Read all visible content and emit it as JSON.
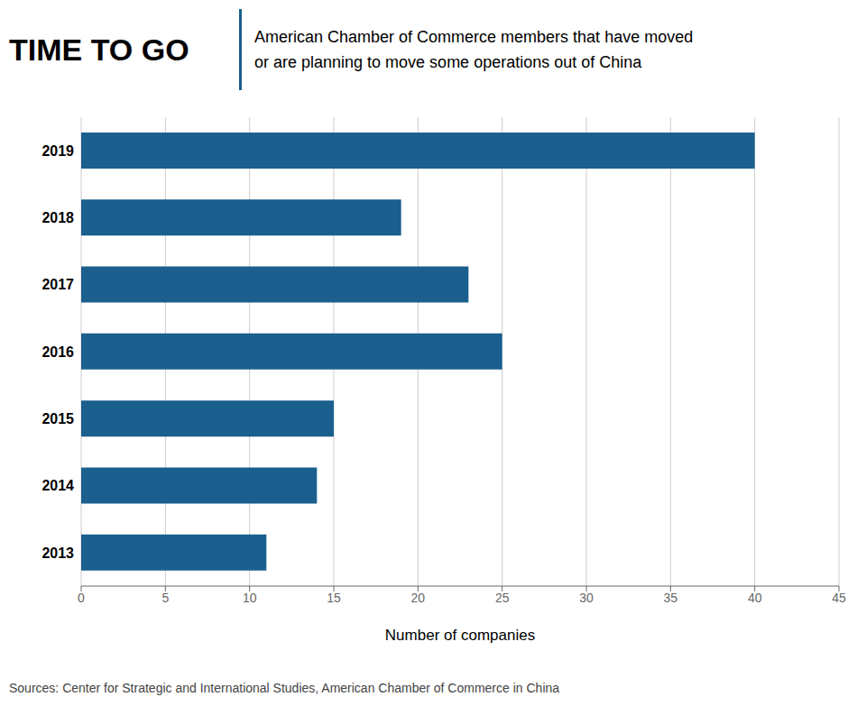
{
  "chart_data": {
    "type": "bar",
    "orientation": "horizontal",
    "title": "TIME TO GO",
    "subtitle": [
      "American Chamber of Commerce members that have moved",
      "or are planning to move some operations out of China"
    ],
    "source": "Sources: Center for Strategic and International Studies, American Chamber of Commerce in China",
    "categories": [
      "2013",
      "2014",
      "2015",
      "2016",
      "2017",
      "2018",
      "2019"
    ],
    "values": [
      11,
      14,
      15,
      25,
      23,
      19,
      40
    ],
    "color": "#1a5f8e",
    "xlabel": "Number of companies",
    "xlim": [
      0,
      45
    ],
    "xticks": [
      0,
      5,
      10,
      15,
      20,
      25,
      30,
      35,
      40,
      45
    ],
    "grid": true
  }
}
